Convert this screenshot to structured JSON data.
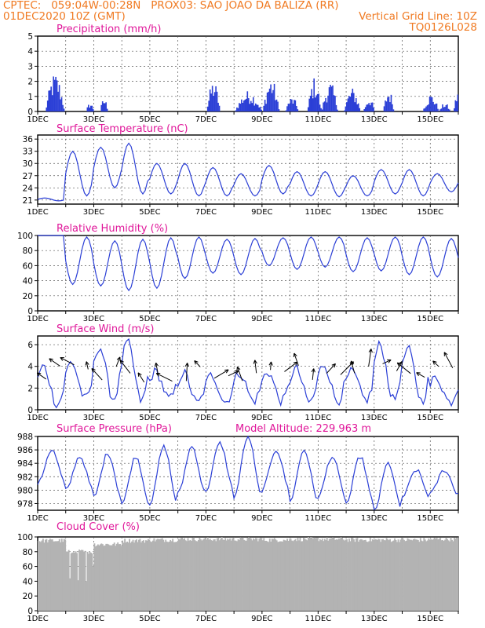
{
  "header": {
    "line1_left": "CPTEC:   059:04W-00:28N   PROX03: SAO JOAO DA BALIZA (RR)",
    "line2_left": "01DEC2020 10Z (GMT)",
    "line2_right": "Vertical Grid Line: 10Z",
    "line3_right": "TQ0126L028"
  },
  "colors": {
    "header": "#f07a22",
    "title": "#e0179a",
    "line": "#2b3fd6",
    "bar": "#2b3fd6",
    "cloud": "#b3b3b3"
  },
  "x_labels": [
    "1DEC",
    "3DEC",
    "5DEC",
    "7DEC",
    "9DEC",
    "11DEC",
    "13DEC",
    "15DEC"
  ],
  "chart_data": [
    {
      "type": "bar",
      "title": "Precipitation (mm/h)",
      "ylim": [
        0,
        5
      ],
      "yticks": [
        0,
        1,
        2,
        3,
        4,
        5
      ],
      "x_range": [
        "01DEC2020 10Z",
        "16DEC2020 10Z"
      ],
      "bursts": [
        {
          "day": 0.25,
          "width": 0.7,
          "peak": 2.6
        },
        {
          "day": 1.7,
          "width": 0.3,
          "peak": 0.6
        },
        {
          "day": 2.2,
          "width": 0.3,
          "peak": 0.9
        },
        {
          "day": 6.0,
          "width": 0.5,
          "peak": 2.1
        },
        {
          "day": 7.0,
          "width": 1.0,
          "peak": 1.4
        },
        {
          "day": 8.0,
          "width": 0.6,
          "peak": 2.3
        },
        {
          "day": 8.8,
          "width": 0.5,
          "peak": 1.0
        },
        {
          "day": 9.6,
          "width": 0.5,
          "peak": 2.3
        },
        {
          "day": 10.1,
          "width": 0.6,
          "peak": 2.0
        },
        {
          "day": 10.9,
          "width": 0.6,
          "peak": 1.6
        },
        {
          "day": 11.6,
          "width": 0.4,
          "peak": 1.0
        },
        {
          "day": 12.3,
          "width": 0.4,
          "peak": 1.5
        },
        {
          "day": 13.7,
          "width": 0.6,
          "peak": 1.2
        },
        {
          "day": 14.3,
          "width": 0.4,
          "peak": 0.6
        },
        {
          "day": 14.8,
          "width": 0.6,
          "peak": 2.2
        }
      ]
    },
    {
      "type": "line",
      "title": "Surface Temperature (nC)",
      "ylim": [
        20,
        37
      ],
      "yticks": [
        21,
        24,
        27,
        30,
        33,
        36
      ],
      "daily_max": [
        21.5,
        33,
        34,
        35,
        30,
        30,
        29,
        27.5,
        29.5,
        28,
        28,
        27,
        28.5,
        28.5,
        27.5
      ],
      "daily_min": [
        20.8,
        22,
        24,
        22.5,
        22.5,
        22,
        22,
        22,
        22.5,
        22,
        21.8,
        22,
        22.5,
        22,
        23
      ]
    },
    {
      "type": "line",
      "title": "Relative Humidity (%)",
      "ylim": [
        0,
        100
      ],
      "yticks": [
        0,
        20,
        40,
        60,
        80,
        100
      ],
      "daily_max": [
        100,
        98,
        93,
        95,
        97,
        98,
        95,
        96,
        97,
        98,
        98,
        97,
        98,
        98,
        96
      ],
      "daily_min": [
        100,
        35,
        33,
        27,
        30,
        43,
        50,
        48,
        60,
        55,
        58,
        52,
        53,
        48,
        45
      ]
    },
    {
      "type": "line",
      "title": "Surface Wind (m/s)",
      "ylim": [
        0,
        6.8
      ],
      "yticks": [
        0,
        2,
        4,
        6
      ],
      "daily_max": [
        4.0,
        4.4,
        5.8,
        6.2,
        3.5,
        3.4,
        3.2,
        3.4,
        3.5,
        3.8,
        4.2,
        3.5,
        6.0,
        5.6,
        3.0
      ],
      "daily_min": [
        0.5,
        1.0,
        1.0,
        0.8,
        1.0,
        0.6,
        0.7,
        0.8,
        0.8,
        0.7,
        0.8,
        0.9,
        0.9,
        0.8,
        0.7
      ]
    },
    {
      "type": "line",
      "title": "Surface Pressure (hPa)",
      "annotation": "Model Altitude: 229.963 m",
      "ylim": [
        977,
        988
      ],
      "yticks": [
        978,
        980,
        982,
        984,
        986,
        988
      ],
      "daily_max": [
        986,
        985,
        985.5,
        985,
        986.5,
        986.5,
        987,
        988,
        986,
        986,
        985,
        985,
        984,
        983,
        983
      ],
      "daily_min": [
        981,
        980,
        979,
        978,
        978,
        979.5,
        980,
        979,
        980,
        978.5,
        979,
        978,
        977,
        979,
        979.5
      ]
    },
    {
      "type": "area",
      "title": "Cloud Cover (%)",
      "ylim": [
        0,
        100
      ],
      "yticks": [
        0,
        20,
        40,
        60,
        80,
        100
      ],
      "daily_mean": [
        95,
        80,
        90,
        95,
        96,
        97,
        97,
        97,
        96,
        97,
        97,
        96,
        96,
        96,
        97
      ]
    }
  ]
}
